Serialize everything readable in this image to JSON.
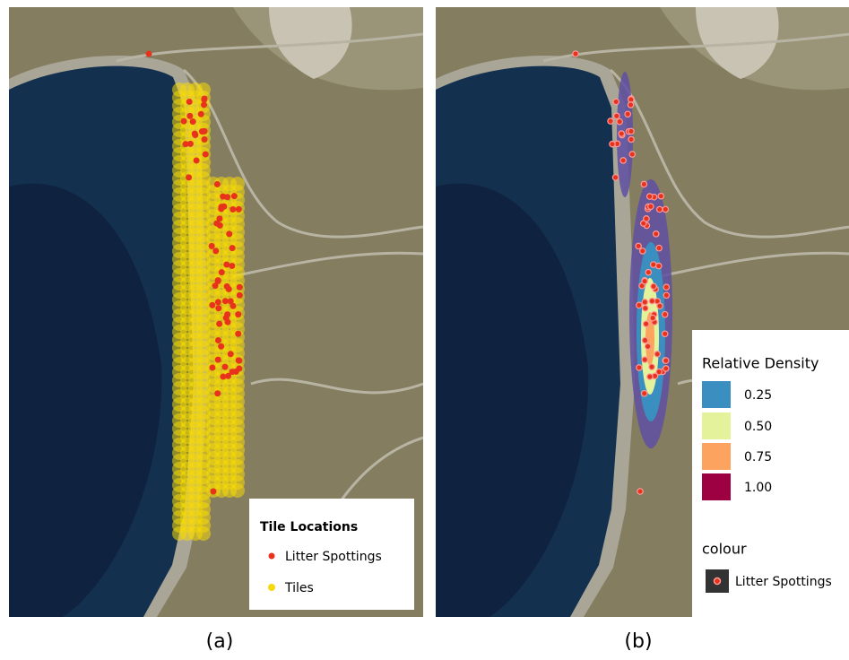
{
  "panels": [
    {
      "label": "(a)",
      "legend": {
        "title": "Tile Locations",
        "entries": [
          {
            "name": "Litter Spottings",
            "color": "#e8331c"
          },
          {
            "name": "Tiles",
            "color": "#f5d90a"
          }
        ]
      }
    },
    {
      "label": "(b)",
      "legend": {
        "title": "Relative Density",
        "levels": [
          {
            "value": 0.25,
            "label": "0.25",
            "color": "#3a8fc0"
          },
          {
            "value": 0.5,
            "label": "0.50",
            "color": "#e4f29b"
          },
          {
            "value": 0.75,
            "label": "0.75",
            "color": "#fba35f"
          },
          {
            "value": 1,
            "label": "1.00",
            "color": "#9e0142"
          }
        ],
        "colour_title": "colour",
        "colour_entry": "Litter Spottings"
      }
    }
  ]
}
